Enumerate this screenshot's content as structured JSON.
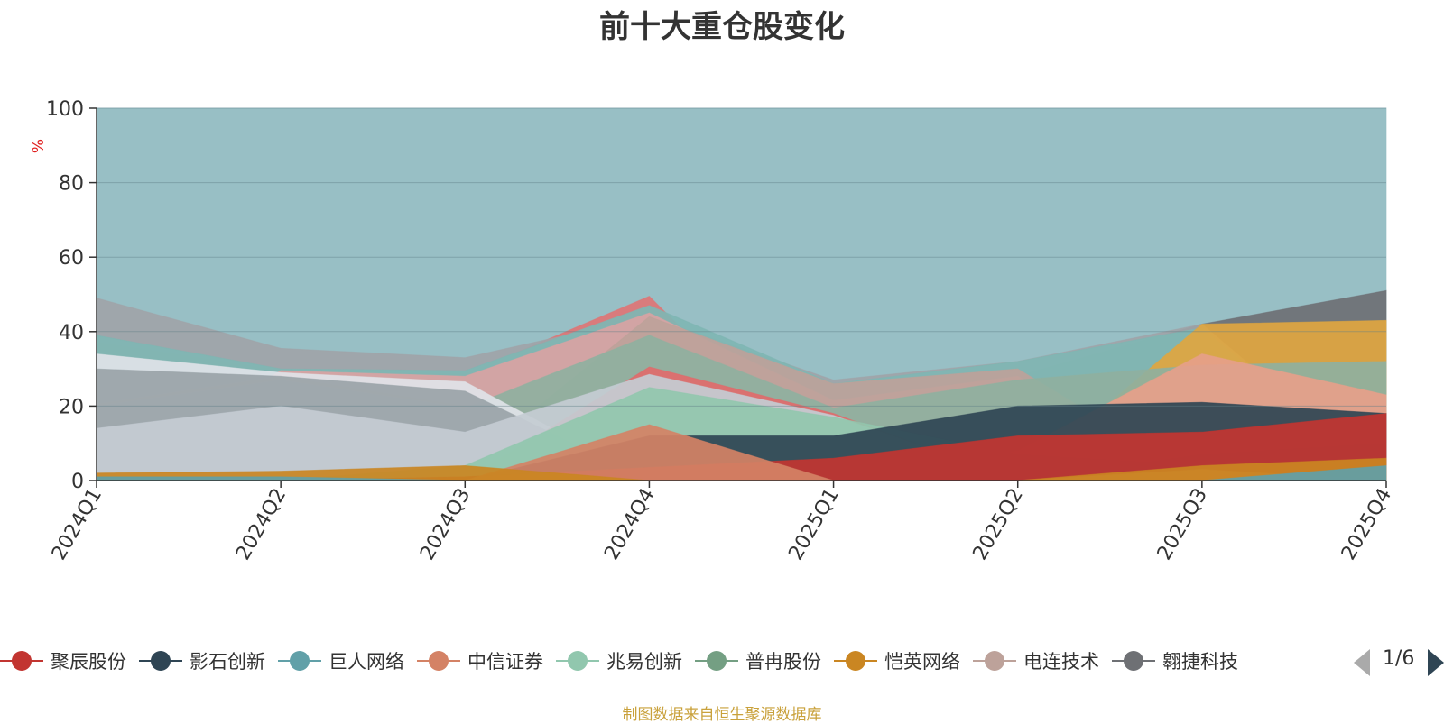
{
  "chart_data": {
    "type": "area",
    "stacked": true,
    "title": "前十大重仓股变化",
    "ylabel": "%",
    "xlabel": "",
    "ylim": [
      0,
      100
    ],
    "yticks": [
      0,
      20,
      40,
      60,
      80,
      100
    ],
    "grid": true,
    "categories": [
      "2024Q1",
      "2024Q2",
      "2024Q3",
      "2024Q4",
      "2025Q1",
      "2025Q2",
      "2025Q3",
      "2025Q4"
    ],
    "series": [
      {
        "name": "聚辰股份",
        "color": "#c23531",
        "values": [
          0,
          0,
          1.0,
          3.5,
          6.0,
          12.0,
          13.0,
          18.0
        ]
      },
      {
        "name": "影石创新",
        "color": "#2f4554",
        "values": [
          0,
          0,
          0,
          12.0,
          12.0,
          20.0,
          21.0,
          18.0
        ]
      },
      {
        "name": "巨人网络",
        "color": "#61a0a8",
        "values": [
          1.0,
          1.0,
          0,
          0,
          0,
          0,
          0,
          4.0
        ]
      },
      {
        "name": "中信证券",
        "color": "#d48265",
        "values": [
          0,
          0,
          0,
          15.0,
          0,
          0,
          3.0,
          0
        ]
      },
      {
        "name": "兆易创新",
        "color": "#91c7ae",
        "values": [
          0,
          0,
          4.0,
          25.0,
          17.0,
          7.0,
          4.0,
          0
        ]
      },
      {
        "name": "普冉股份",
        "color": "#749f83",
        "values": [
          0,
          0,
          0,
          0,
          0,
          0,
          0,
          0
        ]
      },
      {
        "name": "恺英网络",
        "color": "#ca8622",
        "values": [
          2.0,
          2.5,
          4.0,
          0,
          0,
          0,
          4.0,
          6.0
        ]
      },
      {
        "name": "电连技术",
        "color": "#bda29a",
        "values": [
          0,
          8.0,
          4.0,
          44.0,
          26.0,
          30.0,
          0,
          0
        ]
      },
      {
        "name": "翱捷科技",
        "color": "#6e7074",
        "values": [
          4.0,
          10.0,
          4.0,
          0,
          20.0,
          28.0,
          42.0,
          51.0
        ]
      }
    ],
    "other_layers": [
      {
        "color": "#c4ccd3",
        "values": [
          14.0,
          20.0,
          13.0,
          28.5,
          17.5,
          0,
          7.0,
          10.0
        ]
      },
      {
        "color": "#e06b6b",
        "values": [
          0,
          0,
          0,
          30.5,
          18.0,
          0,
          0,
          0
        ]
      },
      {
        "color": "#e6a08a",
        "values": [
          0,
          0,
          0,
          0,
          0,
          8.0,
          34.0,
          23.0
        ]
      },
      {
        "color": "#8fb0a0",
        "values": [
          20.0,
          27.0,
          19.5,
          39.0,
          19.5,
          27.0,
          31.0,
          32.0
        ]
      },
      {
        "color": "#e0a640",
        "values": [
          20.5,
          28.0,
          20.0,
          0,
          0,
          0,
          42.0,
          43.0
        ]
      },
      {
        "color": "#9aa3a8",
        "values": [
          30.0,
          28.0,
          24.0,
          0,
          0,
          0,
          0,
          0
        ]
      },
      {
        "color": "#dfe3e8",
        "values": [
          34.0,
          29.0,
          26.5,
          0,
          0,
          0,
          0,
          0
        ]
      },
      {
        "color": "#d9a3a3",
        "values": [
          0,
          29.5,
          28.0,
          45.0,
          21.5,
          28.0,
          0,
          0
        ]
      },
      {
        "color": "#de7575",
        "values": [
          37.0,
          29.5,
          28.5,
          49.5,
          0,
          0,
          0,
          0
        ]
      },
      {
        "color": "#7fb6b3",
        "values": [
          39.0,
          30.0,
          29.5,
          47.0,
          26.0,
          32.0,
          41.0,
          0
        ]
      },
      {
        "color": "#a0a4a8",
        "values": [
          49.0,
          35.5,
          33.0,
          44.0,
          27.0,
          32.0,
          42.0,
          0
        ]
      },
      {
        "color": "#8fbac0",
        "values": [
          100,
          100,
          100,
          100,
          100,
          100,
          100,
          100
        ]
      }
    ]
  },
  "legend": {
    "items": [
      {
        "name": "聚辰股份",
        "color": "#c23531"
      },
      {
        "name": "影石创新",
        "color": "#2f4554"
      },
      {
        "name": "巨人网络",
        "color": "#61a0a8"
      },
      {
        "name": "中信证券",
        "color": "#d48265"
      },
      {
        "name": "兆易创新",
        "color": "#91c7ae"
      },
      {
        "name": "普冉股份",
        "color": "#749f83"
      },
      {
        "name": "恺英网络",
        "color": "#ca8622"
      },
      {
        "name": "电连技术",
        "color": "#bda29a"
      },
      {
        "name": "翱捷科技",
        "color": "#6e7074"
      }
    ],
    "page_label": "1/6",
    "prev_icon": "triangle-left-icon",
    "next_icon": "triangle-right-icon"
  },
  "source_note": "制图数据来自恒生聚源数据库"
}
